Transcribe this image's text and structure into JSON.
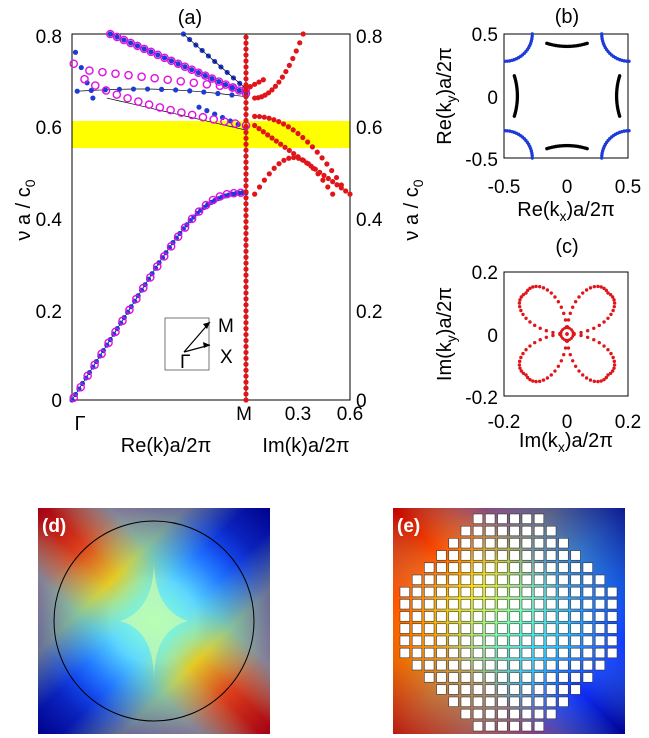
{
  "panels": {
    "a": "(a)",
    "b": "(b)",
    "c": "(c)",
    "d": "(d)",
    "e": "(e)"
  },
  "colors": {
    "blue": "#1f3bd6",
    "magenta": "#e010e0",
    "red": "#e0151a",
    "black": "#000000",
    "band": "#ffff00"
  },
  "chart_data": [
    {
      "id": "a-left",
      "type": "scatter",
      "title": "(a)",
      "ylabel": "ν a / c0",
      "xlabel": "Re(k)a/2π",
      "xticks": [
        "Γ",
        "M"
      ],
      "yticks": [
        "0",
        "0.2",
        "0.4",
        "0.6",
        "0.8"
      ],
      "ylim": [
        0,
        0.8
      ],
      "band": [
        0.555,
        0.61
      ],
      "inset": {
        "labels": [
          "M",
          "X",
          "Γ"
        ]
      },
      "series": [
        {
          "marker": "blue-dot",
          "x": [
            0.0,
            0.02,
            0.04,
            0.06,
            0.08,
            0.1,
            0.12,
            0.14,
            0.16,
            0.18,
            0.2,
            0.22,
            0.24,
            0.26,
            0.28,
            0.3,
            0.32,
            0.34,
            0.36,
            0.38,
            0.4,
            0.42,
            0.44,
            0.46,
            0.48,
            0.5,
            0.52,
            0.54,
            0.56,
            0.58,
            0.6,
            0.62,
            0.64,
            0.66,
            0.68,
            0.7,
            0.72,
            0.74,
            0.76,
            0.78,
            0.8,
            0.82,
            0.84,
            0.86,
            0.88,
            0.9,
            0.92,
            0.94,
            0.96,
            0.98,
            1.0
          ],
          "y": [
            0.0,
            0.012,
            0.024,
            0.036,
            0.048,
            0.06,
            0.072,
            0.084,
            0.096,
            0.108,
            0.12,
            0.132,
            0.144,
            0.156,
            0.168,
            0.18,
            0.192,
            0.204,
            0.216,
            0.228,
            0.24,
            0.252,
            0.264,
            0.276,
            0.288,
            0.3,
            0.311,
            0.322,
            0.333,
            0.344,
            0.354,
            0.364,
            0.374,
            0.383,
            0.392,
            0.4,
            0.408,
            0.415,
            0.421,
            0.427,
            0.432,
            0.436,
            0.44,
            0.443,
            0.446,
            0.448,
            0.45,
            0.451,
            0.452,
            0.453,
            0.453
          ]
        },
        {
          "marker": "magenta-ring",
          "x": [
            0.01,
            0.05,
            0.09,
            0.13,
            0.17,
            0.21,
            0.25,
            0.29,
            0.33,
            0.37,
            0.41,
            0.45,
            0.49,
            0.53,
            0.57,
            0.61,
            0.65,
            0.69,
            0.73,
            0.77,
            0.81,
            0.85,
            0.89,
            0.93,
            0.97
          ],
          "y": [
            0.005,
            0.028,
            0.053,
            0.077,
            0.101,
            0.125,
            0.149,
            0.173,
            0.197,
            0.221,
            0.245,
            0.268,
            0.292,
            0.314,
            0.336,
            0.357,
            0.377,
            0.396,
            0.412,
            0.426,
            0.437,
            0.445,
            0.45,
            0.452,
            0.453
          ]
        }
      ]
    },
    {
      "id": "a-right",
      "type": "scatter",
      "xlabel": "Im(k)a/2π",
      "xticks": [
        "M",
        "0.3",
        "0.6"
      ],
      "yticks": [
        "0",
        "0.2",
        "0.4",
        "0.6",
        "0.8"
      ],
      "xlim": [
        0,
        0.6
      ],
      "ylim": [
        0,
        0.8
      ]
    },
    {
      "id": "b",
      "type": "scatter",
      "title": "(b)",
      "xlabel": "Re(kx)a/2π",
      "ylabel": "Re(ky)a/2π",
      "xticks": [
        "-0.5",
        "0",
        "0.5"
      ],
      "yticks": [
        "-0.5",
        "0",
        "0.5"
      ],
      "xlim": [
        -0.5,
        0.5
      ],
      "ylim": [
        -0.5,
        0.5
      ]
    },
    {
      "id": "c",
      "type": "scatter",
      "title": "(c)",
      "xlabel": "Im(kx)a/2π",
      "ylabel": "Im(ky)a/2π",
      "xticks": [
        "-0.2",
        "0",
        "0.2"
      ],
      "yticks": [
        "-0.2",
        "0",
        "0.2"
      ],
      "xlim": [
        -0.2,
        0.2
      ],
      "ylim": [
        -0.2,
        0.2
      ]
    },
    {
      "id": "d",
      "type": "heatmap",
      "title": "(d)"
    },
    {
      "id": "e",
      "type": "heatmap",
      "title": "(e)"
    }
  ]
}
